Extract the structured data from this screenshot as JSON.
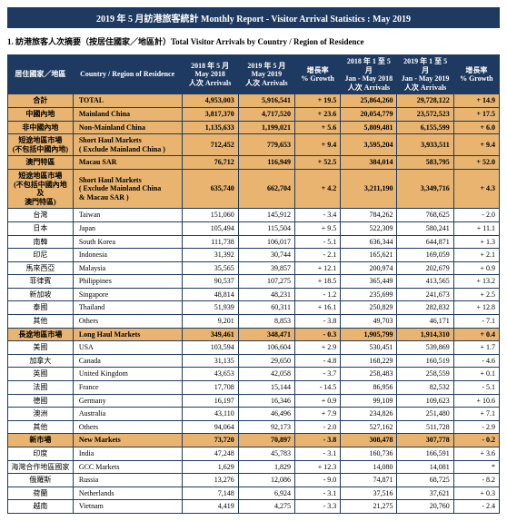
{
  "title": "2019 年 5 月訪港旅客統計 Monthly Report - Visitor Arrival Statistics : May 2019",
  "subtitle": "1.  訪港旅客人次摘要（按居住國家／地區計）Total Visitor Arrivals by Country / Region of Residence",
  "headers": {
    "region_cn": "居住國家／地區",
    "region_en": "Country / Region of Residence",
    "may2018_a": "2018 年 5 月",
    "may2018_b": "May 2018",
    "may2018_c": "人次  Arrivals",
    "may2019_a": "2019 年 5 月",
    "may2019_b": "May 2019",
    "may2019_c": "人次  Arrivals",
    "growth1_a": "增長率",
    "growth1_b": "% Growth",
    "ytd2018_a": "2018 年 1 至 5 月",
    "ytd2018_b": "Jan - May 2018",
    "ytd2018_c": "人次  Arrivals",
    "ytd2019_a": "2019 年 1 至 5 月",
    "ytd2019_b": "Jan - May 2019",
    "ytd2019_c": "人次  Arrivals",
    "growth2_a": "增長率",
    "growth2_b": "% Growth"
  },
  "rows": [
    {
      "type": "tot",
      "cn": "合計",
      "en": "TOTAL",
      "m18": "4,953,003",
      "m19": "5,916,541",
      "g1": "+  19.5",
      "y18": "25,864,260",
      "y19": "29,728,122",
      "g2": "+  14.9"
    },
    {
      "type": "section",
      "cn": "中國內地",
      "en": "Mainland China",
      "m18": "3,817,370",
      "m19": "4,717,520",
      "g1": "+  23.6",
      "y18": "20,054,779",
      "y19": "23,572,523",
      "g2": "+  17.5"
    },
    {
      "type": "section",
      "cn": "非中國內地",
      "en": "Non-Mainland China",
      "m18": "1,135,633",
      "m19": "1,199,021",
      "g1": "+  5.6",
      "y18": "5,809,481",
      "y19": "6,155,599",
      "g2": "+  6.0"
    },
    {
      "type": "section",
      "cn": "短途地區市場\n(不包括中國內地)",
      "en": "Short Haul Markets\n( Exclude Mainland China )",
      "m18": "712,452",
      "m19": "779,653",
      "g1": "+  9.4",
      "y18": "3,595,204",
      "y19": "3,933,511",
      "g2": "+  9.4"
    },
    {
      "type": "sub",
      "cn": "澳門特區",
      "en": "Macau SAR",
      "m18": "76,712",
      "m19": "116,949",
      "g1": "+  52.5",
      "y18": "384,014",
      "y19": "583,795",
      "g2": "+  52.0"
    },
    {
      "type": "section",
      "cn": "短途地區市場\n(不包括中國內地及\n澳門特區)",
      "en": "Short Haul Markets\n( Exclude Mainland China\n& Macau SAR )",
      "m18": "635,740",
      "m19": "662,704",
      "g1": "+  4.2",
      "y18": "3,211,190",
      "y19": "3,349,716",
      "g2": "+  4.3"
    },
    {
      "type": "data",
      "cn": "台灣",
      "en": "Taiwan",
      "m18": "151,060",
      "m19": "145,912",
      "g1": "-  3.4",
      "y18": "784,262",
      "y19": "768,625",
      "g2": "-  2.0"
    },
    {
      "type": "data",
      "cn": "日本",
      "en": "Japan",
      "m18": "105,494",
      "m19": "115,504",
      "g1": "+  9.5",
      "y18": "522,309",
      "y19": "580,241",
      "g2": "+  11.1"
    },
    {
      "type": "data",
      "cn": "南韓",
      "en": "South Korea",
      "m18": "111,738",
      "m19": "106,017",
      "g1": "-  5.1",
      "y18": "636,344",
      "y19": "644,871",
      "g2": "+  1.3"
    },
    {
      "type": "data",
      "cn": "印尼",
      "en": "Indonesia",
      "m18": "31,392",
      "m19": "30,744",
      "g1": "-  2.1",
      "y18": "165,621",
      "y19": "169,059",
      "g2": "+  2.1"
    },
    {
      "type": "data",
      "cn": "馬來西亞",
      "en": "Malaysia",
      "m18": "35,565",
      "m19": "39,857",
      "g1": "+  12.1",
      "y18": "200,974",
      "y19": "202,679",
      "g2": "+  0.9"
    },
    {
      "type": "data",
      "cn": "菲律賓",
      "en": "Philippines",
      "m18": "90,537",
      "m19": "107,275",
      "g1": "+  18.5",
      "y18": "365,449",
      "y19": "413,565",
      "g2": "+  13.2"
    },
    {
      "type": "data",
      "cn": "新加坡",
      "en": "Singapore",
      "m18": "48,814",
      "m19": "48,231",
      "g1": "-  1.2",
      "y18": "235,699",
      "y19": "241,673",
      "g2": "+  2.5"
    },
    {
      "type": "data",
      "cn": "泰國",
      "en": "Thailand",
      "m18": "51,939",
      "m19": "60,311",
      "g1": "+  16.1",
      "y18": "250,829",
      "y19": "282,832",
      "g2": "+  12.8"
    },
    {
      "type": "data",
      "cn": "其他",
      "en": "Others",
      "m18": "9,201",
      "m19": "8,853",
      "g1": "-  3.8",
      "y18": "49,703",
      "y19": "46,171",
      "g2": "-  7.1"
    },
    {
      "type": "section",
      "cn": "長途地區市場",
      "en": "Long Haul Markets",
      "m18": "349,461",
      "m19": "348,471",
      "g1": "-  0.3",
      "y18": "1,905,799",
      "y19": "1,914,310",
      "g2": "+  0.4"
    },
    {
      "type": "data",
      "cn": "美國",
      "en": "USA",
      "m18": "103,594",
      "m19": "106,604",
      "g1": "+  2.9",
      "y18": "530,451",
      "y19": "539,869",
      "g2": "+  1.7"
    },
    {
      "type": "data",
      "cn": "加拿大",
      "en": "Canada",
      "m18": "31,135",
      "m19": "29,650",
      "g1": "-  4.8",
      "y18": "168,229",
      "y19": "160,519",
      "g2": "-  4.6"
    },
    {
      "type": "data",
      "cn": "英國",
      "en": "United Kingdom",
      "m18": "43,653",
      "m19": "42,058",
      "g1": "-  3.7",
      "y18": "258,483",
      "y19": "258,559",
      "g2": "+  0.1"
    },
    {
      "type": "data",
      "cn": "法國",
      "en": "France",
      "m18": "17,708",
      "m19": "15,144",
      "g1": "-  14.5",
      "y18": "86,956",
      "y19": "82,532",
      "g2": "-  5.1"
    },
    {
      "type": "data",
      "cn": "德國",
      "en": "Germany",
      "m18": "16,197",
      "m19": "16,346",
      "g1": "+  0.9",
      "y18": "99,109",
      "y19": "109,623",
      "g2": "+  10.6"
    },
    {
      "type": "data",
      "cn": "澳洲",
      "en": "Australia",
      "m18": "43,110",
      "m19": "46,496",
      "g1": "+  7.9",
      "y18": "234,826",
      "y19": "251,480",
      "g2": "+  7.1"
    },
    {
      "type": "data",
      "cn": "其他",
      "en": "Others",
      "m18": "94,064",
      "m19": "92,173",
      "g1": "-  2.0",
      "y18": "527,162",
      "y19": "511,728",
      "g2": "-  2.9"
    },
    {
      "type": "section",
      "cn": "新市場",
      "en": "New Markets",
      "m18": "73,720",
      "m19": "70,897",
      "g1": "-  3.8",
      "y18": "308,478",
      "y19": "307,778",
      "g2": "-  0.2"
    },
    {
      "type": "data",
      "cn": "印度",
      "en": "India",
      "m18": "47,248",
      "m19": "45,783",
      "g1": "-  3.1",
      "y18": "160,736",
      "y19": "166,591",
      "g2": "+  3.6"
    },
    {
      "type": "data",
      "cn": "海灣合作地區國家",
      "en": "GCC Markets",
      "m18": "1,629",
      "m19": "1,829",
      "g1": "+  12.3",
      "y18": "14,080",
      "y19": "14,081",
      "g2": "*"
    },
    {
      "type": "data",
      "cn": "俄羅斯",
      "en": "Russia",
      "m18": "13,276",
      "m19": "12,086",
      "g1": "-  9.0",
      "y18": "74,871",
      "y19": "68,725",
      "g2": "-  8.2"
    },
    {
      "type": "data",
      "cn": "荷蘭",
      "en": "Netherlands",
      "m18": "7,148",
      "m19": "6,924",
      "g1": "-  3.1",
      "y18": "37,516",
      "y19": "37,621",
      "g2": "+  0.3"
    },
    {
      "type": "data",
      "cn": "越南",
      "en": "Vietnam",
      "m18": "4,419",
      "m19": "4,275",
      "g1": "-  3.3",
      "y18": "21,275",
      "y19": "20,760",
      "g2": "-  2.4"
    }
  ]
}
